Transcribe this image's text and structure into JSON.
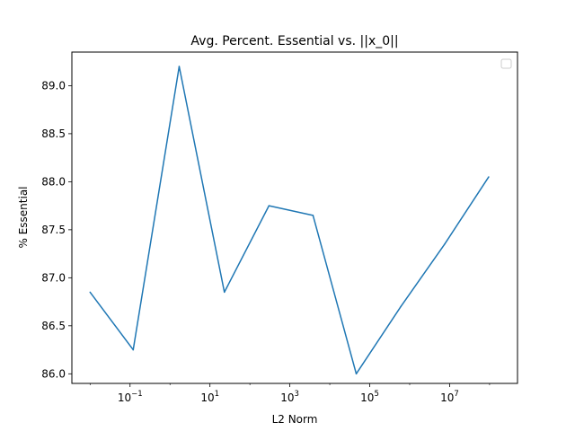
{
  "chart_data": {
    "type": "line",
    "title": "Avg. Percent. Essential vs. ||x_0||",
    "xlabel": "L2 Norm",
    "ylabel": "% Essential",
    "xscale": "log",
    "xlim": [
      0.0035,
      500000000
    ],
    "ylim": [
      85.9,
      89.35
    ],
    "grid": false,
    "legend": {
      "position": "top-right",
      "entries": []
    },
    "x_ticks": [
      {
        "value": 0.1,
        "base": "10",
        "exp": "−1"
      },
      {
        "value": 10,
        "base": "10",
        "exp": "1"
      },
      {
        "value": 1000,
        "base": "10",
        "exp": "3"
      },
      {
        "value": 100000,
        "base": "10",
        "exp": "5"
      },
      {
        "value": 10000000,
        "base": "10",
        "exp": "7"
      }
    ],
    "y_ticks": [
      86.0,
      86.5,
      87.0,
      87.5,
      88.0,
      88.5,
      89.0
    ],
    "series": [
      {
        "color": "#1f77b4",
        "x": [
          0.01,
          0.12,
          1.7,
          23,
          300,
          3800,
          46000,
          600000,
          7500000,
          95000000
        ],
        "y": [
          86.85,
          86.25,
          89.2,
          86.85,
          87.75,
          87.65,
          86.0,
          86.7,
          87.35,
          88.05
        ]
      }
    ]
  }
}
